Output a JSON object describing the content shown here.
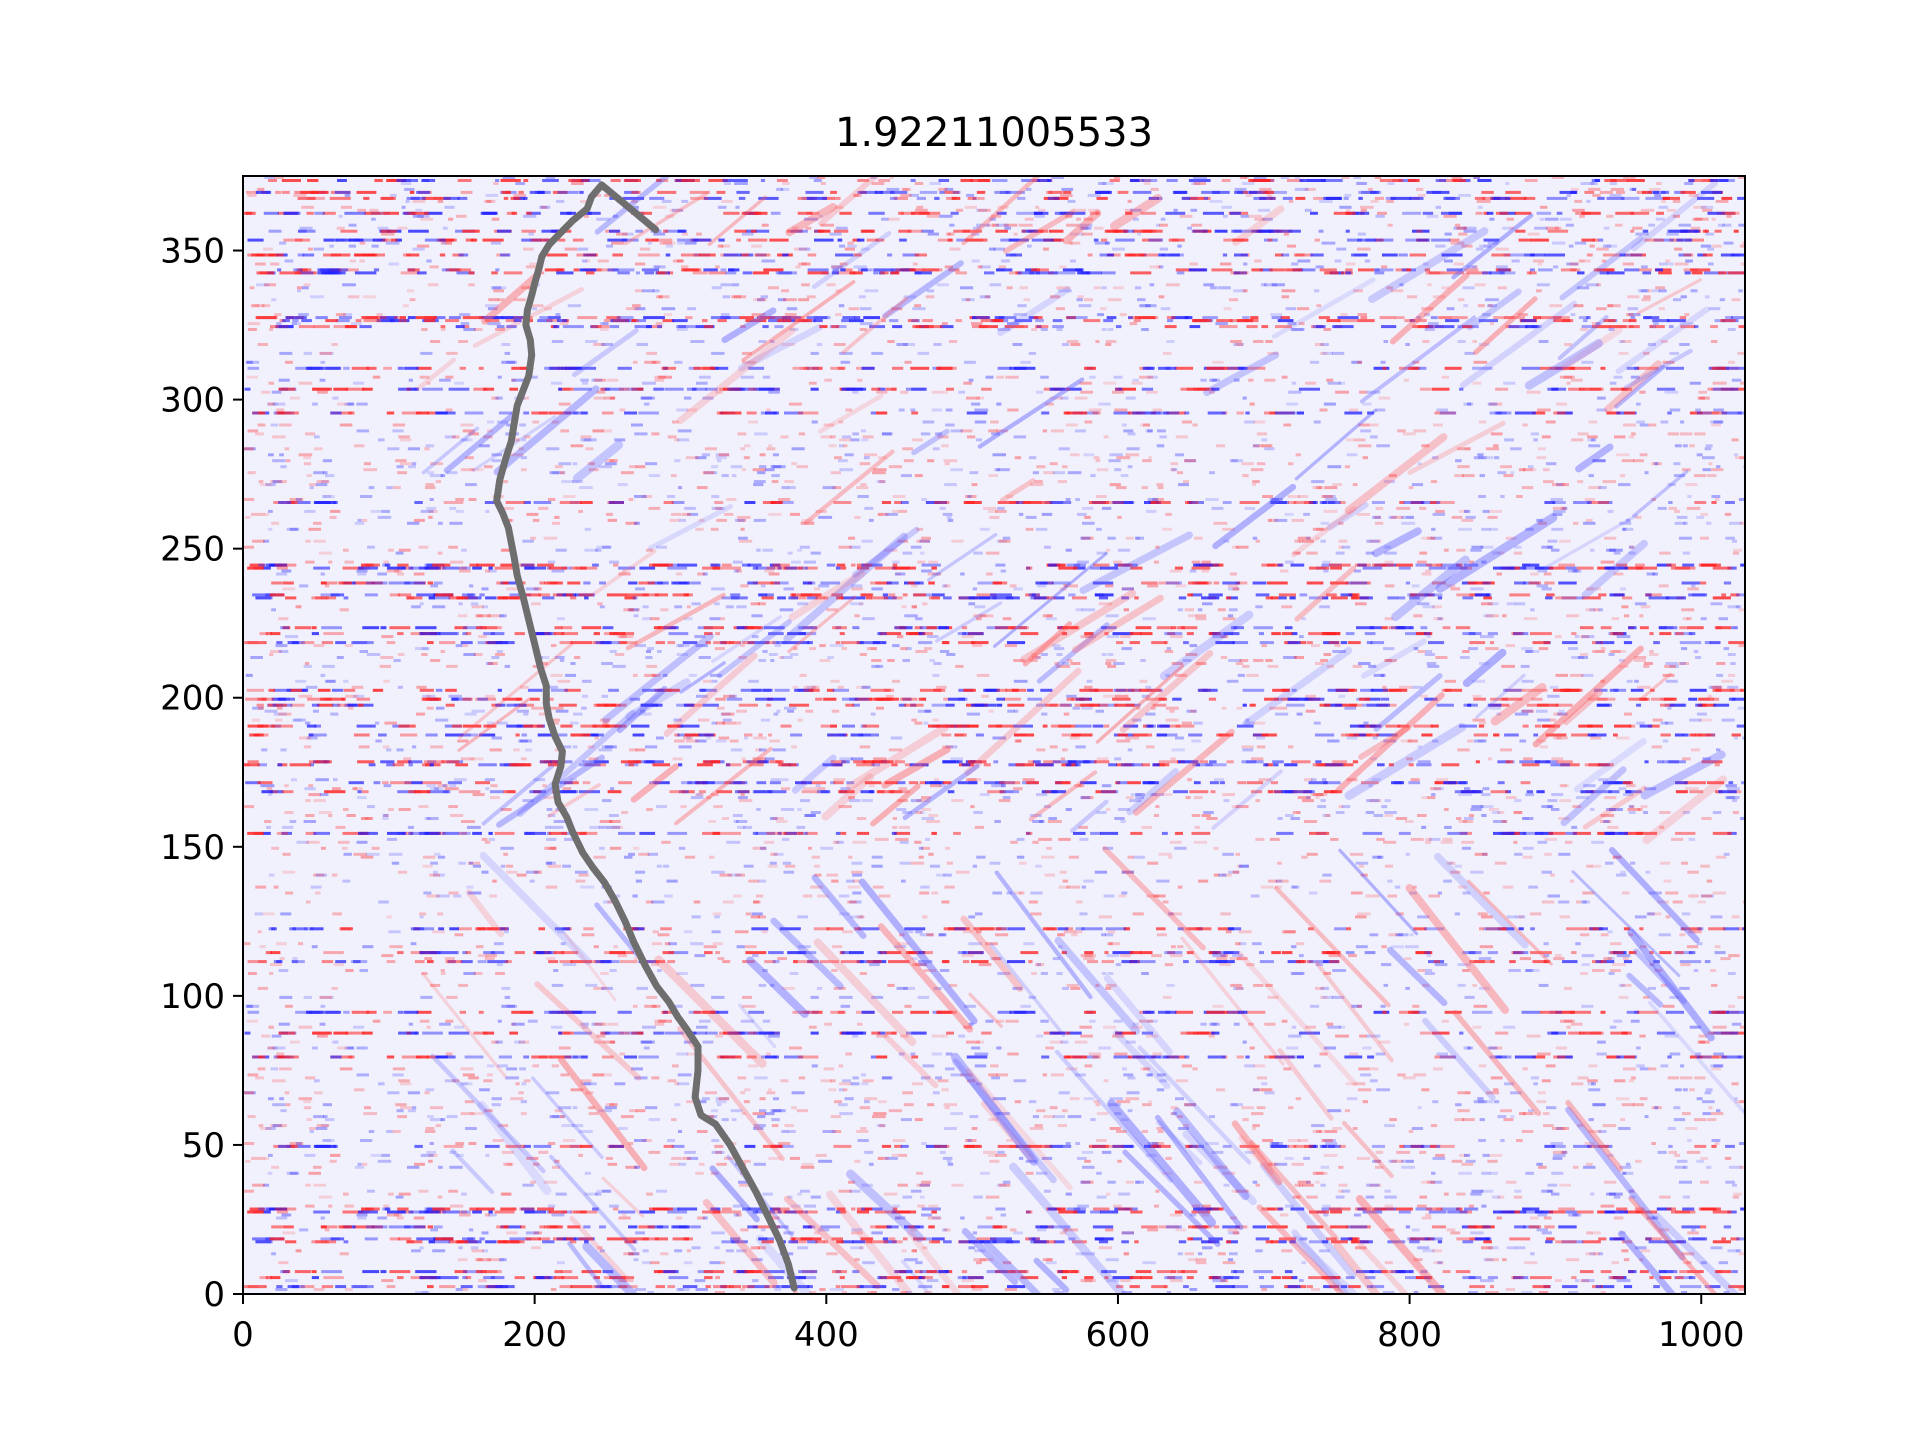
{
  "chart_data": {
    "type": "heatmap",
    "title": "1.92211005533",
    "xlabel": "",
    "ylabel": "",
    "xlim": [
      0,
      1030
    ],
    "ylim": [
      0,
      375
    ],
    "xticks": [
      0,
      200,
      400,
      600,
      800,
      1000
    ],
    "yticks": [
      0,
      50,
      100,
      150,
      200,
      250,
      300,
      350
    ],
    "xtick_labels": [
      "0",
      "200",
      "400",
      "600",
      "800",
      "1000"
    ],
    "ytick_labels": [
      "0",
      "50",
      "100",
      "150",
      "200",
      "250",
      "300",
      "350"
    ],
    "grid": false,
    "colormap": "bwr",
    "colors": {
      "negative": "#0000ff",
      "zero": "#ffffff",
      "positive": "#ff0000",
      "line": "#6e6e6e"
    },
    "series": [
      {
        "type": "line",
        "x": [
          378,
          374,
          368,
          360,
          352,
          343,
          334,
          324,
          314,
          310,
          312,
          312,
          304,
          298,
          292,
          284,
          276,
          268,
          262,
          255,
          248,
          240,
          233,
          226,
          222,
          216,
          214,
          218,
          219,
          214,
          210,
          208,
          208,
          204,
          200,
          196,
          192,
          188,
          186,
          184,
          182,
          178,
          174,
          176,
          180,
          184,
          186,
          188,
          192,
          196,
          198,
          197,
          194,
          195,
          198,
          200,
          203,
          205,
          210,
          218,
          226,
          236,
          239,
          246,
          252,
          258,
          264,
          268,
          272,
          275,
          283
        ],
        "y": [
          2,
          10,
          18,
          26,
          34,
          42,
          50,
          57,
          60,
          66,
          75,
          83,
          89,
          93,
          98,
          103,
          110,
          118,
          125,
          132,
          138,
          143,
          148,
          155,
          160,
          165,
          171,
          177,
          182,
          187,
          193,
          198,
          204,
          210,
          218,
          226,
          234,
          241,
          247,
          252,
          257,
          262,
          266,
          273,
          280,
          286,
          292,
          298,
          303,
          308,
          315,
          320,
          325,
          330,
          335,
          339,
          344,
          348,
          352,
          356,
          360,
          364,
          368,
          372,
          376,
          380,
          384,
          388,
          392,
          396,
          357
        ]
      }
    ]
  }
}
